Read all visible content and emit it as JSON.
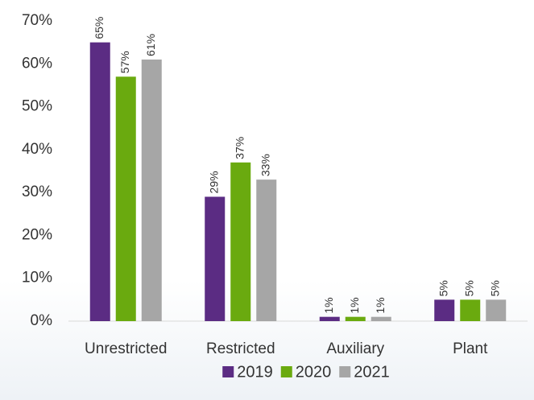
{
  "chart_data": {
    "type": "bar",
    "categories": [
      "Unrestricted",
      "Restricted",
      "Auxiliary",
      "Plant"
    ],
    "series": [
      {
        "name": "2019",
        "color": "#5b2c83",
        "values": [
          65,
          29,
          1,
          5
        ],
        "value_labels": [
          "65%",
          "29%",
          "1%",
          "5%"
        ]
      },
      {
        "name": "2020",
        "color": "#6aaa0f",
        "values": [
          57,
          37,
          1,
          5
        ],
        "value_labels": [
          "57%",
          "37%",
          "1%",
          "5%"
        ]
      },
      {
        "name": "2021",
        "color": "#a6a6a6",
        "values": [
          61,
          33,
          1,
          5
        ],
        "value_labels": [
          "61%",
          "33%",
          "1%",
          "5%"
        ]
      }
    ],
    "ylim": [
      0,
      70
    ],
    "yticks": [
      {
        "value": 0,
        "label": "0%"
      },
      {
        "value": 10,
        "label": "10%"
      },
      {
        "value": 20,
        "label": "20%"
      },
      {
        "value": 30,
        "label": "30%"
      },
      {
        "value": 40,
        "label": "40%"
      },
      {
        "value": 50,
        "label": "50%"
      },
      {
        "value": 60,
        "label": "60%"
      },
      {
        "value": 70,
        "label": "70%"
      }
    ],
    "grid": false,
    "legend": "bottom"
  }
}
